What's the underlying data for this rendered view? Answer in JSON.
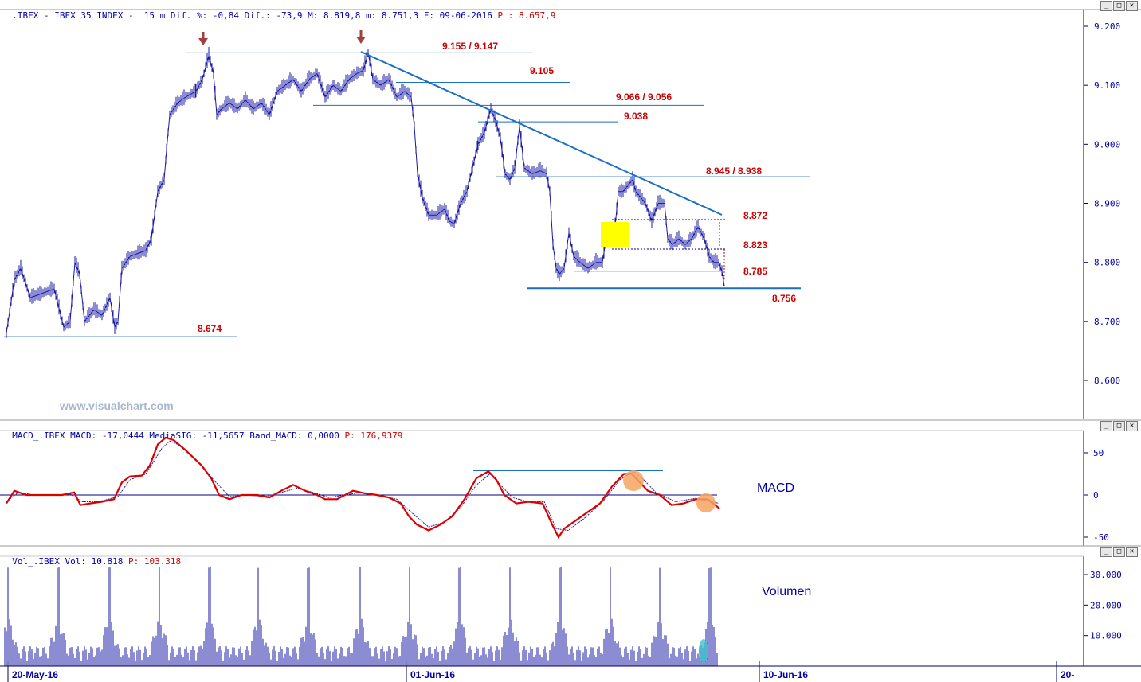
{
  "header": {
    "main": ".IBEX - IBEX 35 INDEX -  15 m Dif. %: -0,84 Dif.: -73,9 M: 8.819,8 m: 8.751,3 F: 09-06-2016",
    "main_red": "P : 8.657,9",
    "macd": "MACD_.IBEX MACD: -17,0444 MediaSIG: -11,5657 Band_MACD: 0,0000",
    "macd_red": "P: 176,9379",
    "vol": "Vol_.IBEX Vol: 10.818",
    "vol_red": "P: 103.318"
  },
  "window_buttons": [
    "_",
    "□",
    "✕"
  ],
  "watermark": "www.visualchart.com",
  "colors": {
    "price": "#1a1aa6",
    "trendline": "#1b6fc4",
    "level_text": "#cc0000",
    "macd": "#dd0000",
    "signal": "#2020a0",
    "highlight": "#ffff00",
    "circle": "#f4a460",
    "volume_cyan": "#40c0d0",
    "arrow": "#a04040"
  },
  "chart_data": [
    {
      "type": "line",
      "title": "IBEX 35 INDEX 15 m",
      "x_tick_labels": [
        "20-May-16",
        "01-Jun-16",
        "10-Jun-16",
        "20-"
      ],
      "y_tick_labels": [
        "9.200",
        "9.100",
        "9.000",
        "8.900",
        "8.800",
        "8.700",
        "8.600"
      ],
      "ylim": [
        8540,
        9220
      ],
      "grid": false,
      "price_path": [
        [
          0,
          8680
        ],
        [
          10,
          8770
        ],
        [
          18,
          8790
        ],
        [
          30,
          8740
        ],
        [
          40,
          8745
        ],
        [
          60,
          8755
        ],
        [
          72,
          8690
        ],
        [
          80,
          8700
        ],
        [
          86,
          8800
        ],
        [
          92,
          8780
        ],
        [
          98,
          8700
        ],
        [
          110,
          8720
        ],
        [
          120,
          8710
        ],
        [
          130,
          8740
        ],
        [
          136,
          8690
        ],
        [
          140,
          8700
        ],
        [
          145,
          8790
        ],
        [
          155,
          8810
        ],
        [
          165,
          8815
        ],
        [
          175,
          8820
        ],
        [
          182,
          8840
        ],
        [
          190,
          8920
        ],
        [
          198,
          8940
        ],
        [
          201,
          8990
        ],
        [
          205,
          9050
        ],
        [
          215,
          9070
        ],
        [
          225,
          9080
        ],
        [
          238,
          9090
        ],
        [
          246,
          9110
        ],
        [
          254,
          9150
        ],
        [
          260,
          9120
        ],
        [
          264,
          9050
        ],
        [
          270,
          9060
        ],
        [
          280,
          9070
        ],
        [
          290,
          9060
        ],
        [
          300,
          9075
        ],
        [
          310,
          9060
        ],
        [
          320,
          9070
        ],
        [
          330,
          9050
        ],
        [
          340,
          9090
        ],
        [
          350,
          9100
        ],
        [
          360,
          9110
        ],
        [
          370,
          9090
        ],
        [
          380,
          9110
        ],
        [
          390,
          9120
        ],
        [
          400,
          9080
        ],
        [
          410,
          9100
        ],
        [
          420,
          9090
        ],
        [
          430,
          9110
        ],
        [
          440,
          9120
        ],
        [
          448,
          9125
        ],
        [
          454,
          9155
        ],
        [
          460,
          9110
        ],
        [
          470,
          9100
        ],
        [
          480,
          9110
        ],
        [
          490,
          9080
        ],
        [
          500,
          9090
        ],
        [
          508,
          9080
        ],
        [
          512,
          9030
        ],
        [
          516,
          8950
        ],
        [
          522,
          8910
        ],
        [
          530,
          8880
        ],
        [
          540,
          8880
        ],
        [
          550,
          8890
        ],
        [
          556,
          8870
        ],
        [
          562,
          8865
        ],
        [
          570,
          8900
        ],
        [
          578,
          8920
        ],
        [
          585,
          8960
        ],
        [
          592,
          9000
        ],
        [
          600,
          9020
        ],
        [
          608,
          9060
        ],
        [
          614,
          9040
        ],
        [
          620,
          9010
        ],
        [
          626,
          8950
        ],
        [
          632,
          8940
        ],
        [
          638,
          8960
        ],
        [
          644,
          9030
        ],
        [
          650,
          8960
        ],
        [
          660,
          8950
        ],
        [
          670,
          8955
        ],
        [
          678,
          8950
        ],
        [
          682,
          8920
        ],
        [
          686,
          8830
        ],
        [
          690,
          8790
        ],
        [
          694,
          8780
        ],
        [
          700,
          8790
        ],
        [
          706,
          8850
        ],
        [
          712,
          8810
        ],
        [
          720,
          8800
        ],
        [
          730,
          8790
        ],
        [
          740,
          8800
        ],
        [
          748,
          8800
        ],
        [
          754,
          8850
        ],
        [
          758,
          8840
        ],
        [
          764,
          8860
        ],
        [
          768,
          8920
        ],
        [
          774,
          8920
        ],
        [
          780,
          8930
        ],
        [
          786,
          8940
        ],
        [
          790,
          8920
        ],
        [
          796,
          8910
        ],
        [
          802,
          8900
        ],
        [
          810,
          8870
        ],
        [
          818,
          8900
        ],
        [
          826,
          8900
        ],
        [
          830,
          8840
        ],
        [
          836,
          8830
        ],
        [
          844,
          8840
        ],
        [
          852,
          8830
        ],
        [
          860,
          8840
        ],
        [
          868,
          8860
        ],
        [
          876,
          8840
        ],
        [
          882,
          8810
        ],
        [
          888,
          8800
        ],
        [
          894,
          8800
        ],
        [
          898,
          8785
        ],
        [
          901,
          8760
        ]
      ],
      "levels": [
        {
          "price": 9155,
          "label": "9.155 / 9.147"
        },
        {
          "price": 9105,
          "label": "9.105"
        },
        {
          "price": 9066,
          "label": "9.066 / 9.056"
        },
        {
          "price": 9038,
          "label": "9.038"
        },
        {
          "price": 8945,
          "label": "8.945 / 8.938"
        },
        {
          "price": 8872,
          "label": "8.872"
        },
        {
          "price": 8823,
          "label": "8.823"
        },
        {
          "price": 8785,
          "label": "8.785"
        },
        {
          "price": 8756,
          "label": "8.756"
        },
        {
          "price": 8674,
          "label": "8.674"
        }
      ]
    },
    {
      "type": "line",
      "title": "MACD",
      "y_tick_labels": [
        "50",
        "0",
        "-50"
      ],
      "ylim": [
        -60,
        75
      ],
      "series": [
        {
          "name": "MACD",
          "points": [
            [
              5,
              -10
            ],
            [
              15,
              5
            ],
            [
              30,
              0
            ],
            [
              50,
              0
            ],
            [
              75,
              0
            ],
            [
              90,
              3
            ],
            [
              98,
              -12
            ],
            [
              110,
              -10
            ],
            [
              125,
              -8
            ],
            [
              140,
              -5
            ],
            [
              150,
              15
            ],
            [
              160,
              22
            ],
            [
              175,
              23
            ],
            [
              185,
              35
            ],
            [
              195,
              60
            ],
            [
              205,
              68
            ],
            [
              215,
              65
            ],
            [
              230,
              53
            ],
            [
              250,
              35
            ],
            [
              262,
              20
            ],
            [
              272,
              0
            ],
            [
              285,
              -5
            ],
            [
              300,
              0
            ],
            [
              320,
              0
            ],
            [
              335,
              -3
            ],
            [
              350,
              5
            ],
            [
              365,
              12
            ],
            [
              380,
              5
            ],
            [
              395,
              0
            ],
            [
              405,
              -5
            ],
            [
              420,
              -5
            ],
            [
              440,
              5
            ],
            [
              455,
              2
            ],
            [
              470,
              0
            ],
            [
              485,
              -3
            ],
            [
              500,
              -10
            ],
            [
              510,
              -25
            ],
            [
              520,
              -35
            ],
            [
              535,
              -42
            ],
            [
              550,
              -35
            ],
            [
              565,
              -25
            ],
            [
              580,
              -5
            ],
            [
              595,
              20
            ],
            [
              610,
              28
            ],
            [
              620,
              18
            ],
            [
              630,
              0
            ],
            [
              645,
              -10
            ],
            [
              660,
              -8
            ],
            [
              678,
              -10
            ],
            [
              690,
              -35
            ],
            [
              698,
              -50
            ],
            [
              705,
              -40
            ],
            [
              720,
              -30
            ],
            [
              735,
              -20
            ],
            [
              750,
              -10
            ],
            [
              765,
              10
            ],
            [
              780,
              25
            ],
            [
              790,
              25
            ],
            [
              800,
              15
            ],
            [
              810,
              5
            ],
            [
              825,
              0
            ],
            [
              840,
              -12
            ],
            [
              855,
              -10
            ],
            [
              870,
              -5
            ],
            [
              885,
              -5
            ],
            [
              900,
              -16
            ]
          ]
        },
        {
          "name": "MediaSIG",
          "points": [
            [
              5,
              -8
            ],
            [
              20,
              3
            ],
            [
              40,
              0
            ],
            [
              60,
              0
            ],
            [
              85,
              1
            ],
            [
              100,
              -8
            ],
            [
              120,
              -8
            ],
            [
              145,
              -2
            ],
            [
              160,
              18
            ],
            [
              180,
              25
            ],
            [
              200,
              55
            ],
            [
              210,
              64
            ],
            [
              225,
              58
            ],
            [
              245,
              40
            ],
            [
              265,
              18
            ],
            [
              285,
              -2
            ],
            [
              305,
              0
            ],
            [
              330,
              -2
            ],
            [
              350,
              3
            ],
            [
              370,
              8
            ],
            [
              390,
              3
            ],
            [
              410,
              -3
            ],
            [
              430,
              0
            ],
            [
              450,
              3
            ],
            [
              470,
              0
            ],
            [
              495,
              -5
            ],
            [
              515,
              -22
            ],
            [
              535,
              -38
            ],
            [
              555,
              -32
            ],
            [
              575,
              -15
            ],
            [
              595,
              12
            ],
            [
              612,
              25
            ],
            [
              625,
              12
            ],
            [
              640,
              -3
            ],
            [
              660,
              -8
            ],
            [
              680,
              -8
            ],
            [
              695,
              -40
            ],
            [
              710,
              -42
            ],
            [
              730,
              -28
            ],
            [
              755,
              -6
            ],
            [
              775,
              18
            ],
            [
              792,
              28
            ],
            [
              805,
              18
            ],
            [
              820,
              3
            ],
            [
              845,
              -8
            ],
            [
              870,
              -4
            ],
            [
              900,
              -10
            ]
          ]
        }
      ]
    },
    {
      "type": "bar",
      "title": "Volumen",
      "y_tick_labels": [
        "30.000",
        "20.000",
        "10.000"
      ],
      "ylim": [
        0,
        35000
      ]
    }
  ]
}
